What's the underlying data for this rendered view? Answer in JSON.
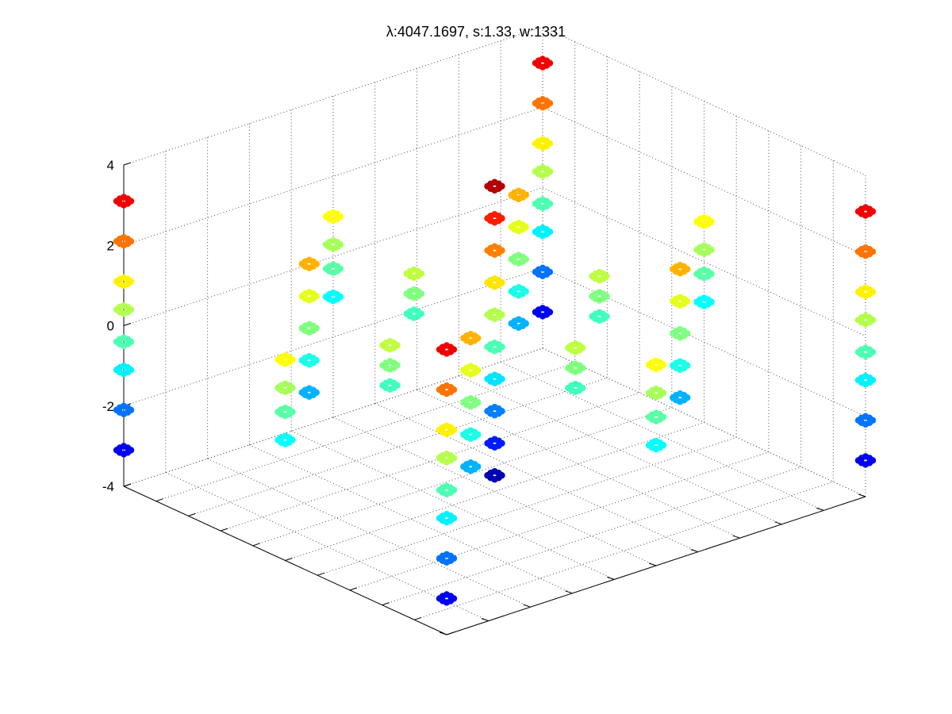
{
  "chart_data": {
    "type": "scatter",
    "projection": "3d",
    "title": "λ:4047.1697, s:1.33, w:1331",
    "xlabel": "",
    "ylabel": "",
    "zlabel": "",
    "grid": true,
    "legend": "none",
    "colormap": "jet",
    "zlim": [
      -4,
      4
    ],
    "z_ticks": [
      "-4",
      "-2",
      "0",
      "2",
      "4"
    ],
    "x_tick_count": 11,
    "y_tick_count": 11,
    "series": [
      {
        "points": [
          [
            -4,
            -4,
            3.1
          ],
          [
            -4,
            -4,
            2.1
          ],
          [
            -4,
            -4,
            1.1
          ],
          [
            -4,
            -4,
            0.4
          ],
          [
            -4,
            -4,
            -0.4
          ],
          [
            -4,
            -4,
            -1.1
          ],
          [
            -4,
            -4,
            -2.1
          ],
          [
            -4,
            -4,
            -3.1
          ],
          [
            4,
            -4,
            3.1
          ],
          [
            4,
            -4,
            2.1
          ],
          [
            4,
            -4,
            1.1
          ],
          [
            4,
            -4,
            0.4
          ],
          [
            4,
            -4,
            -0.4
          ],
          [
            4,
            -4,
            -1.1
          ],
          [
            4,
            -4,
            -2.1
          ],
          [
            4,
            -4,
            -3.1
          ],
          [
            -4,
            4,
            3.1
          ],
          [
            -4,
            4,
            2.1
          ],
          [
            -4,
            4,
            1.1
          ],
          [
            -4,
            4,
            0.4
          ],
          [
            -4,
            4,
            -0.4
          ],
          [
            -4,
            4,
            -1.1
          ],
          [
            -4,
            4,
            -2.1
          ],
          [
            -4,
            4,
            -3.1
          ],
          [
            4,
            4,
            3.1
          ],
          [
            4,
            4,
            2.1
          ],
          [
            4,
            4,
            1.1
          ],
          [
            4,
            4,
            0.4
          ],
          [
            4,
            4,
            -0.4
          ],
          [
            4,
            4,
            -1.1
          ],
          [
            4,
            4,
            -2.1
          ],
          [
            4,
            4,
            -3.1
          ],
          [
            0,
            0,
            3.6
          ],
          [
            0,
            0,
            2.8
          ],
          [
            0,
            0,
            2.0
          ],
          [
            0,
            0,
            1.2
          ],
          [
            0,
            0,
            0.4
          ],
          [
            0,
            0,
            -0.4
          ],
          [
            0,
            0,
            -1.2
          ],
          [
            0,
            0,
            -2.0
          ],
          [
            0,
            0,
            -2.8
          ],
          [
            0,
            0,
            -3.6
          ],
          [
            -2,
            -2,
            1.6
          ],
          [
            -2,
            -2,
            0.8
          ],
          [
            -2,
            -2,
            0
          ],
          [
            -2,
            -2,
            -0.8
          ],
          [
            -2,
            -2,
            -1.6
          ],
          [
            2,
            -2,
            1.6
          ],
          [
            2,
            -2,
            0.8
          ],
          [
            2,
            -2,
            0
          ],
          [
            2,
            -2,
            -0.8
          ],
          [
            2,
            -2,
            -1.6
          ],
          [
            -2,
            2,
            1.6
          ],
          [
            -2,
            2,
            0.8
          ],
          [
            -2,
            2,
            0
          ],
          [
            -2,
            2,
            -0.8
          ],
          [
            -2,
            2,
            -1.6
          ],
          [
            2,
            2,
            1.6
          ],
          [
            2,
            2,
            0.8
          ],
          [
            2,
            2,
            0
          ],
          [
            2,
            2,
            -0.8
          ],
          [
            2,
            2,
            -1.6
          ],
          [
            0,
            -4,
            1.0
          ],
          [
            0,
            -4,
            0.3
          ],
          [
            0,
            -4,
            -0.3
          ],
          [
            0,
            -4,
            -1.0
          ],
          [
            0,
            4,
            1.0
          ],
          [
            0,
            4,
            0.3
          ],
          [
            0,
            4,
            -0.3
          ],
          [
            0,
            4,
            -1.0
          ],
          [
            -4,
            0,
            1.0
          ],
          [
            -4,
            0,
            0.3
          ],
          [
            -4,
            0,
            -0.3
          ],
          [
            -4,
            0,
            -1.0
          ],
          [
            4,
            0,
            1.0
          ],
          [
            4,
            0,
            0.3
          ],
          [
            4,
            0,
            -0.3
          ],
          [
            4,
            0,
            -1.0
          ],
          [
            -2,
            0,
            0.5
          ],
          [
            -2,
            0,
            0
          ],
          [
            -2,
            0,
            -0.5
          ],
          [
            2,
            0,
            0.5
          ],
          [
            2,
            0,
            0
          ],
          [
            2,
            0,
            -0.5
          ],
          [
            0,
            -2,
            0.5
          ],
          [
            0,
            -2,
            0
          ],
          [
            0,
            -2,
            -0.5
          ],
          [
            0,
            2,
            0.5
          ],
          [
            0,
            2,
            0
          ],
          [
            0,
            2,
            -0.5
          ]
        ]
      }
    ]
  }
}
